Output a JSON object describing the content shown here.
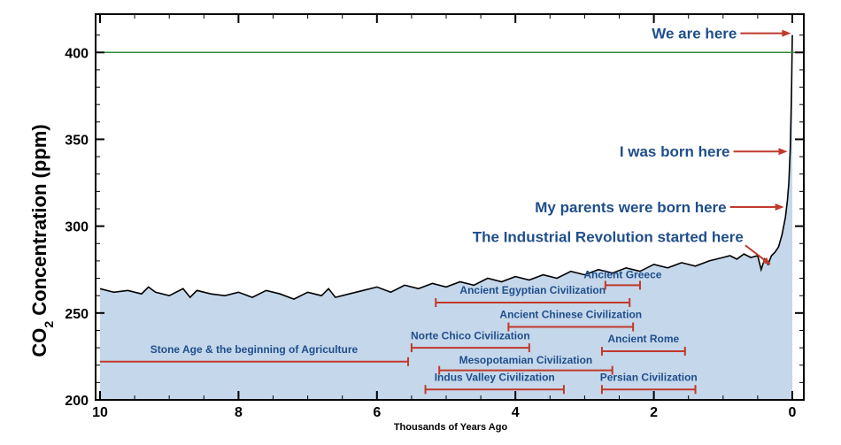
{
  "chart_data": {
    "type": "area",
    "xlabel": "Thousands of Years Ago",
    "ylabel_main": "CO",
    "ylabel_sub": "2",
    "ylabel_rest": " Concentration (ppm)",
    "xlim": [
      10,
      0
    ],
    "ylim": [
      200,
      420
    ],
    "xticks": [
      10,
      8,
      6,
      4,
      2,
      0
    ],
    "yticks": [
      200,
      250,
      300,
      350,
      400
    ],
    "reference_line": {
      "y": 400,
      "color": "#2e8b3a"
    },
    "colors": {
      "fill": "#c5d7ea",
      "line": "#000000",
      "bar": "#c0392b",
      "text": "#1f4e8c"
    },
    "series": [
      {
        "x": [
          10.0,
          9.8,
          9.6,
          9.4,
          9.3,
          9.2,
          9.0,
          8.8,
          8.7,
          8.6,
          8.4,
          8.2,
          8.0,
          7.8,
          7.6,
          7.4,
          7.2,
          7.0,
          6.8,
          6.7,
          6.6,
          6.4,
          6.2,
          6.0,
          5.8,
          5.6,
          5.4,
          5.2,
          5.0,
          4.8,
          4.6,
          4.4,
          4.2,
          4.0,
          3.8,
          3.6,
          3.4,
          3.2,
          3.0,
          2.8,
          2.6,
          2.4,
          2.2,
          2.0,
          1.8,
          1.6,
          1.4,
          1.2,
          1.0,
          0.9,
          0.8,
          0.7,
          0.6,
          0.5,
          0.45,
          0.4,
          0.35,
          0.3,
          0.25,
          0.2,
          0.15,
          0.1,
          0.07,
          0.05,
          0.03,
          0.02,
          0.01,
          0.0
        ],
        "y": [
          264,
          262,
          263,
          261,
          265,
          262,
          260,
          264,
          259,
          263,
          261,
          260,
          262,
          259,
          263,
          261,
          258,
          262,
          260,
          264,
          259,
          261,
          263,
          265,
          262,
          266,
          264,
          267,
          265,
          268,
          266,
          270,
          268,
          271,
          269,
          272,
          270,
          274,
          272,
          275,
          273,
          276,
          274,
          278,
          276,
          279,
          277,
          280,
          282,
          283,
          281,
          284,
          282,
          283,
          275,
          281,
          278,
          283,
          285,
          288,
          295,
          305,
          315,
          325,
          345,
          360,
          380,
          410
        ]
      }
    ],
    "annotations": [
      {
        "text": "We are here",
        "arrow_from_x": 0.75,
        "arrow_to_x": 0.02,
        "y": 411
      },
      {
        "text": "I was born here",
        "arrow_from_x": 0.85,
        "arrow_to_x": 0.07,
        "y": 343
      },
      {
        "text": "My parents were born here",
        "arrow_from_x": 0.9,
        "arrow_to_x": 0.12,
        "y": 311
      },
      {
        "text": "The Industrial Revolution started here",
        "arrow_from_x": 0.68,
        "arrow_to_x": 0.32,
        "y": 278,
        "label_y": 294,
        "diag_from_y": 289
      }
    ],
    "civilizations": [
      {
        "name": "Ancient Greece",
        "start": 2.7,
        "end": 2.2,
        "bar_y": 266,
        "label_y": 270
      },
      {
        "name": "Ancient Egyptian Civilization",
        "start": 5.15,
        "end": 2.35,
        "bar_y": 256,
        "label_y": 261
      },
      {
        "name": "Ancient Chinese Civilization",
        "start": 4.1,
        "end": 2.3,
        "bar_y": 242,
        "label_y": 247
      },
      {
        "name": "Norte Chico Civilization",
        "start": 5.5,
        "end": 3.8,
        "bar_y": 230,
        "label_y": 235
      },
      {
        "name": "Ancient Rome",
        "start": 2.75,
        "end": 1.55,
        "bar_y": 228,
        "label_y": 233
      },
      {
        "name": "Stone Age & the beginning of Agriculture",
        "start": 10.0,
        "end": 5.55,
        "bar_y": 222,
        "label_y": 227
      },
      {
        "name": "Mesopotamian Civilization",
        "start": 5.1,
        "end": 2.6,
        "bar_y": 217,
        "label_y": 221
      },
      {
        "name": "Indus Valley Civilization",
        "start": 5.3,
        "end": 3.3,
        "bar_y": 206,
        "label_y": 211
      },
      {
        "name": "Persian Civilization",
        "start": 2.75,
        "end": 1.4,
        "bar_y": 206,
        "label_y": 211
      }
    ]
  }
}
